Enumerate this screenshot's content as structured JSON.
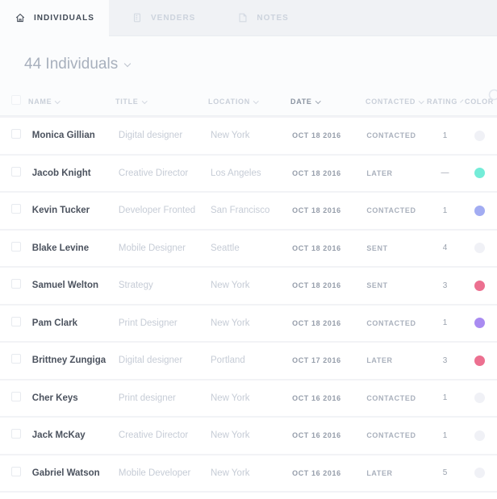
{
  "tabs": [
    {
      "label": "INDIVIDUALS",
      "icon": "home-icon",
      "active": true
    },
    {
      "label": "VENDERS",
      "icon": "building-icon",
      "active": false
    },
    {
      "label": "NOTES",
      "icon": "note-icon",
      "active": false
    }
  ],
  "titlebar": {
    "title": "44 Individuals",
    "search_icon": "search-icon"
  },
  "table": {
    "columns": [
      "NAME",
      "TITLE",
      "LOCATION",
      "DATE",
      "CONTACTED",
      "RATING",
      "COLOR"
    ],
    "sorted_column": "DATE",
    "rows": [
      {
        "name": "Monica Gillian",
        "title": "Digital designer",
        "location": "New York",
        "date": "OCT 18 2016",
        "contacted": "CONTACTED",
        "rating": "1",
        "color": "#f0f1f6"
      },
      {
        "name": "Jacob Knight",
        "title": "Creative Director",
        "location": "Los Angeles",
        "date": "OCT 18 2016",
        "contacted": "LATER",
        "rating": "—",
        "color": "#74ecd8"
      },
      {
        "name": "Kevin Tucker",
        "title": "Developer Fronted",
        "location": "San Francisco",
        "date": "OCT 18 2016",
        "contacted": "CONTACTED",
        "rating": "1",
        "color": "#a2acf2"
      },
      {
        "name": "Blake Levine",
        "title": "Mobile Designer",
        "location": "Seattle",
        "date": "OCT 18 2016",
        "contacted": "SENT",
        "rating": "4",
        "color": "#f0f1f6"
      },
      {
        "name": "Samuel Welton",
        "title": "Strategy",
        "location": "New York",
        "date": "OCT 18 2016",
        "contacted": "SENT",
        "rating": "3",
        "color": "#ec7090"
      },
      {
        "name": "Pam Clark",
        "title": "Print Designer",
        "location": "New York",
        "date": "OCT 18 2016",
        "contacted": "CONTACTED",
        "rating": "1",
        "color": "#a98bf1"
      },
      {
        "name": "Brittney Zungiga",
        "title": "Digital designer",
        "location": "Portland",
        "date": "OCT 17 2016",
        "contacted": "LATER",
        "rating": "3",
        "color": "#ec7090"
      },
      {
        "name": "Cher Keys",
        "title": "Print designer",
        "location": "New York",
        "date": "OCT 16 2016",
        "contacted": "CONTACTED",
        "rating": "1",
        "color": "#f0f1f6"
      },
      {
        "name": "Jack McKay",
        "title": "Creative Director",
        "location": "New York",
        "date": "OCT 16 2016",
        "contacted": "CONTACTED",
        "rating": "1",
        "color": "#f0f1f6"
      },
      {
        "name": "Gabriel Watson",
        "title": "Mobile Developer",
        "location": "New York",
        "date": "OCT 16 2016",
        "contacted": "LATER",
        "rating": "5",
        "color": "#f0f1f6"
      }
    ]
  }
}
